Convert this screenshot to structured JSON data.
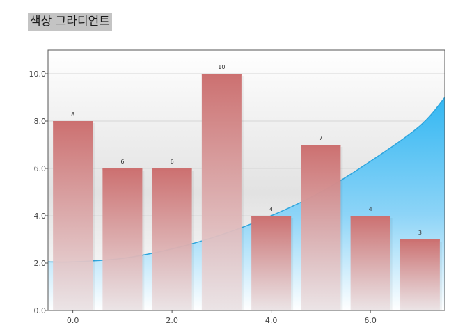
{
  "page": {
    "title": "색상 그라디언트"
  },
  "chart_data": {
    "type": "bar",
    "x": [
      0,
      1,
      2,
      3,
      4,
      5,
      6,
      7
    ],
    "values": [
      8,
      6,
      6,
      10,
      4,
      7,
      4,
      3
    ],
    "data_labels": [
      "8",
      "6",
      "6",
      "10",
      "4",
      "7",
      "4",
      "3"
    ],
    "xticks": [
      0,
      2,
      4,
      6
    ],
    "xtick_labels": [
      "0.0",
      "2.0",
      "4.0",
      "6.0"
    ],
    "yticks": [
      0,
      2,
      4,
      6,
      8,
      10
    ],
    "ytick_labels": [
      "0.0",
      "2.0",
      "4.0",
      "6.0",
      "8.0",
      "10.0"
    ],
    "xlim": [
      -0.5,
      7.5
    ],
    "ylim": [
      0,
      11
    ],
    "title": "",
    "xlabel": "",
    "ylabel": "",
    "grid": "horizontal",
    "area_curve": {
      "x": [
        -0.5,
        0,
        1,
        2,
        3,
        4,
        5,
        6,
        7,
        7.5
      ],
      "y": [
        2.05,
        2.05,
        2.2,
        2.6,
        3.2,
        4.0,
        5.0,
        6.3,
        7.8,
        9.0
      ]
    },
    "colors": {
      "bar_top": "#cc7070",
      "bar_bottom": "#ece4e6",
      "area_fill": "#3bbcf1",
      "area_line": "#2ea5dd",
      "plot_bg_mid": "#e4e4e4"
    }
  }
}
